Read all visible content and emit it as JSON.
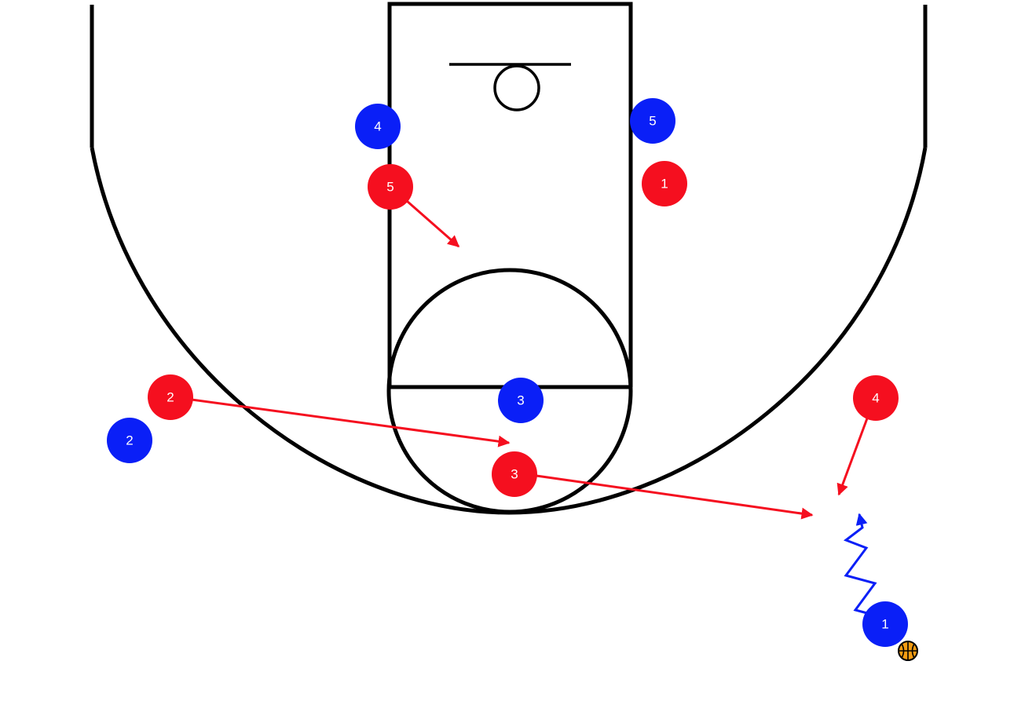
{
  "colors": {
    "offense": "#0a1ff7",
    "defense": "#f50f1f",
    "court_lines": "#000000",
    "ball": "#f39c12",
    "background": "#ffffff"
  },
  "icons": {
    "ball": "basketball-icon"
  },
  "players": {
    "offense": [
      {
        "label": "1",
        "has_ball": true
      },
      {
        "label": "2"
      },
      {
        "label": "3"
      },
      {
        "label": "4"
      },
      {
        "label": "5"
      }
    ],
    "defense": [
      {
        "label": "1"
      },
      {
        "label": "2"
      },
      {
        "label": "3"
      },
      {
        "label": "4"
      },
      {
        "label": "5"
      }
    ]
  },
  "movements": [
    {
      "type": "cut",
      "team": "defense",
      "player": "5"
    },
    {
      "type": "cut",
      "team": "defense",
      "player": "2"
    },
    {
      "type": "cut",
      "team": "defense",
      "player": "3"
    },
    {
      "type": "cut",
      "team": "defense",
      "player": "4"
    },
    {
      "type": "dribble",
      "team": "offense",
      "player": "1"
    }
  ]
}
